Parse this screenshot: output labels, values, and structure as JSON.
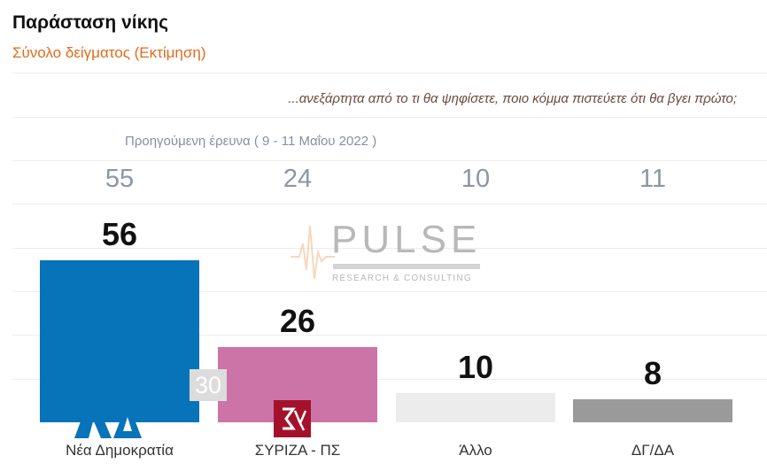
{
  "title": "Παράσταση νίκης",
  "subtitle": "Σύνολο δείγματος   (Εκτίμηση)",
  "question": "...ανεξάρτητα από το τι θα ψηφίσετε, ποιο κόμμα πιστεύετε ότι θα βγει πρώτο;",
  "previous_label": "Προηγούμενη έρευνα  ( 9 - 11 Μαΐου  2022 )",
  "badge": "30",
  "watermark": {
    "brand": "PULSE",
    "sub": "RESEARCH & CONSULTING"
  },
  "logos": {
    "nd_text": "ΝΔ",
    "syriza_text": "ΣΥ"
  },
  "colors": {
    "nd": "#0773b8",
    "syriza": "#cc73a8",
    "other": "#ececec",
    "blank": "#9a9a9a"
  },
  "chart_data": {
    "type": "bar",
    "title": "Παράσταση νίκης",
    "subtitle": "Σύνολο δείγματος   (Εκτίμηση)",
    "categories": [
      "Νέα Δημοκρατία",
      "ΣΥΡΙΖΑ - ΠΣ",
      "Άλλο",
      "ΔΓ/ΔΑ"
    ],
    "values": [
      56,
      26,
      10,
      8
    ],
    "previous_values": [
      55,
      24,
      10,
      11
    ],
    "previous_label": "Προηγούμενη έρευνα  ( 9 - 11 Μαΐου  2022 )",
    "value_labels": [
      "56",
      "26",
      "10",
      "8"
    ],
    "previous_value_labels": [
      "55",
      "24",
      "10",
      "11"
    ],
    "bar_colors": [
      "#0773b8",
      "#cc73a8",
      "#ececec",
      "#9a9a9a"
    ],
    "ylim": [
      0,
      56
    ],
    "grid": true,
    "legend": "none"
  }
}
